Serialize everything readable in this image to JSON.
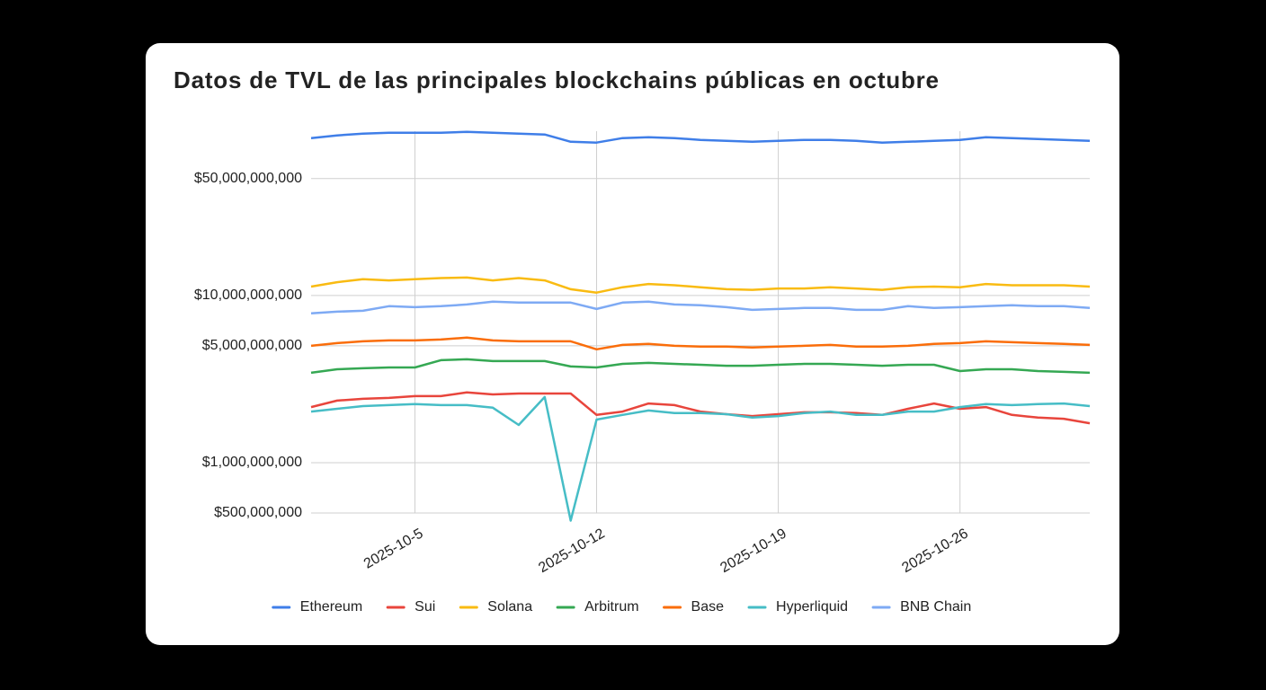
{
  "chart_data": {
    "type": "line",
    "title": "Datos de TVL de las principales blockchains públicas en octubre",
    "x": [
      "2025-10-1",
      "2025-10-2",
      "2025-10-3",
      "2025-10-4",
      "2025-10-5",
      "2025-10-6",
      "2025-10-7",
      "2025-10-8",
      "2025-10-9",
      "2025-10-10",
      "2025-10-11",
      "2025-10-12",
      "2025-10-13",
      "2025-10-14",
      "2025-10-15",
      "2025-10-16",
      "2025-10-17",
      "2025-10-18",
      "2025-10-19",
      "2025-10-20",
      "2025-10-21",
      "2025-10-22",
      "2025-10-23",
      "2025-10-24",
      "2025-10-25",
      "2025-10-26",
      "2025-10-27",
      "2025-10-28",
      "2025-10-29",
      "2025-10-30",
      "2025-10-31"
    ],
    "xticks": [
      "2025-10-5",
      "2025-10-12",
      "2025-10-19",
      "2025-10-26"
    ],
    "log_scale": true,
    "grid": true,
    "legend": "bottom",
    "ylim": [
      500000000.0,
      96000000000.0
    ],
    "yticks": [
      {
        "value": 500000000.0,
        "label": "$500,000,000"
      },
      {
        "value": 1000000000.0,
        "label": "$1,000,000,000"
      },
      {
        "value": 5000000000.0,
        "label": "$5,000,000,000"
      },
      {
        "value": 10000000000.0,
        "label": "$10,000,000,000"
      },
      {
        "value": 50000000000.0,
        "label": "$50,000,000,000"
      }
    ],
    "series": [
      {
        "name": "Ethereum",
        "color": "#3f7ee8",
        "values": [
          87300000000.0,
          90600000000.0,
          92900000000.0,
          94000000000.0,
          94000000000.0,
          94000000000.0,
          95100000000.0,
          94000000000.0,
          92900000000.0,
          91700000000.0,
          83000000000.0,
          82000000000.0,
          87300000000.0,
          88300000000.0,
          87300000000.0,
          85100000000.0,
          84100000000.0,
          83000000000.0,
          84100000000.0,
          85100000000.0,
          85100000000.0,
          84100000000.0,
          82000000000.0,
          83000000000.0,
          84100000000.0,
          85100000000.0,
          88300000000.0,
          87300000000.0,
          86100000000.0,
          85100000000.0,
          84100000000.0
        ]
      },
      {
        "name": "Sui",
        "color": "#e8453c",
        "values": [
          2150000000.0,
          2350000000.0,
          2410000000.0,
          2440000000.0,
          2500000000.0,
          2500000000.0,
          2630000000.0,
          2560000000.0,
          2590000000.0,
          2590000000.0,
          2590000000.0,
          1930000000.0,
          2020000000.0,
          2260000000.0,
          2210000000.0,
          2020000000.0,
          1950000000.0,
          1900000000.0,
          1950000000.0,
          2000000000.0,
          2000000000.0,
          1980000000.0,
          1930000000.0,
          2100000000.0,
          2260000000.0,
          2100000000.0,
          2150000000.0,
          1930000000.0,
          1860000000.0,
          1830000000.0,
          1720000000.0
        ]
      },
      {
        "name": "Solana",
        "color": "#f9bb12",
        "values": [
          11300000000.0,
          12000000000.0,
          12500000000.0,
          12300000000.0,
          12500000000.0,
          12700000000.0,
          12800000000.0,
          12300000000.0,
          12700000000.0,
          12300000000.0,
          10900000000.0,
          10400000000.0,
          11200000000.0,
          11700000000.0,
          11500000000.0,
          11200000000.0,
          10900000000.0,
          10800000000.0,
          11000000000.0,
          11000000000.0,
          11200000000.0,
          11000000000.0,
          10800000000.0,
          11200000000.0,
          11300000000.0,
          11200000000.0,
          11700000000.0,
          11500000000.0,
          11500000000.0,
          11500000000.0,
          11300000000.0
        ]
      },
      {
        "name": "Arbitrum",
        "color": "#35a853",
        "values": [
          3450000000.0,
          3620000000.0,
          3670000000.0,
          3710000000.0,
          3710000000.0,
          4100000000.0,
          4150000000.0,
          4050000000.0,
          4050000000.0,
          4050000000.0,
          3760000000.0,
          3710000000.0,
          3900000000.0,
          3950000000.0,
          3900000000.0,
          3850000000.0,
          3800000000.0,
          3800000000.0,
          3850000000.0,
          3900000000.0,
          3900000000.0,
          3850000000.0,
          3800000000.0,
          3850000000.0,
          3850000000.0,
          3530000000.0,
          3620000000.0,
          3620000000.0,
          3530000000.0,
          3490000000.0,
          3450000000.0
        ]
      },
      {
        "name": "Base",
        "color": "#fa6d0a",
        "values": [
          5000000000.0,
          5190000000.0,
          5320000000.0,
          5380000000.0,
          5380000000.0,
          5450000000.0,
          5590000000.0,
          5380000000.0,
          5320000000.0,
          5320000000.0,
          5320000000.0,
          4760000000.0,
          5060000000.0,
          5130000000.0,
          5000000000.0,
          4940000000.0,
          4940000000.0,
          4880000000.0,
          4940000000.0,
          5000000000.0,
          5060000000.0,
          4940000000.0,
          4940000000.0,
          5000000000.0,
          5130000000.0,
          5190000000.0,
          5320000000.0,
          5250000000.0,
          5190000000.0,
          5130000000.0,
          5060000000.0
        ]
      },
      {
        "name": "Hyperliquid",
        "color": "#46bdc6",
        "values": [
          2020000000.0,
          2100000000.0,
          2180000000.0,
          2210000000.0,
          2240000000.0,
          2210000000.0,
          2210000000.0,
          2130000000.0,
          1680000000.0,
          2470000000.0,
          450000000.0,
          1810000000.0,
          1930000000.0,
          2050000000.0,
          1980000000.0,
          1980000000.0,
          1950000000.0,
          1860000000.0,
          1900000000.0,
          1980000000.0,
          2020000000.0,
          1930000000.0,
          1930000000.0,
          2020000000.0,
          2020000000.0,
          2150000000.0,
          2240000000.0,
          2210000000.0,
          2240000000.0,
          2260000000.0,
          2180000000.0
        ]
      },
      {
        "name": "BNB Chain",
        "color": "#7eaaf4",
        "values": [
          7810000000.0,
          8000000000.0,
          8100000000.0,
          8620000000.0,
          8510000000.0,
          8620000000.0,
          8830000000.0,
          9170000000.0,
          9060000000.0,
          9060000000.0,
          9060000000.0,
          8300000000.0,
          9060000000.0,
          9170000000.0,
          8830000000.0,
          8730000000.0,
          8510000000.0,
          8200000000.0,
          8300000000.0,
          8410000000.0,
          8410000000.0,
          8200000000.0,
          8200000000.0,
          8620000000.0,
          8410000000.0,
          8510000000.0,
          8620000000.0,
          8730000000.0,
          8620000000.0,
          8620000000.0,
          8410000000.0
        ]
      }
    ]
  }
}
